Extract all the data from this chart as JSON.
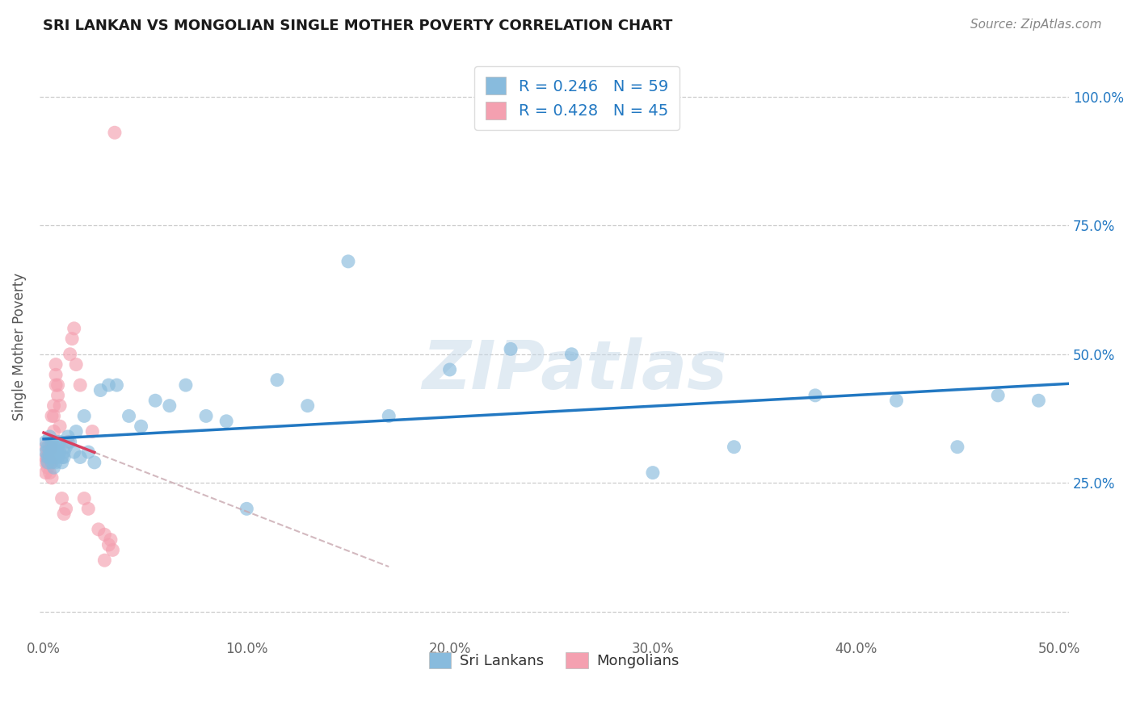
{
  "title": "SRI LANKAN VS MONGOLIAN SINGLE MOTHER POVERTY CORRELATION CHART",
  "source": "Source: ZipAtlas.com",
  "ylabel": "Single Mother Poverty",
  "xlim": [
    -0.002,
    0.505
  ],
  "ylim": [
    -0.05,
    1.08
  ],
  "yticks": [
    0.0,
    0.25,
    0.5,
    0.75,
    1.0
  ],
  "ytick_labels": [
    "",
    "25.0%",
    "50.0%",
    "75.0%",
    "100.0%"
  ],
  "xticks": [
    0.0,
    0.1,
    0.2,
    0.3,
    0.4,
    0.5
  ],
  "xtick_labels": [
    "0.0%",
    "10.0%",
    "20.0%",
    "30.0%",
    "40.0%",
    "50.0%"
  ],
  "blue_scatter_color": "#88BBDD",
  "pink_scatter_color": "#F4A0B0",
  "blue_line_color": "#2278C2",
  "pink_line_color": "#D84060",
  "pink_dashed_color": "#C8A8B0",
  "grid_color": "#CCCCCC",
  "bg_color": "#FFFFFF",
  "watermark": "ZIPatlas",
  "legend_R_blue": "R = 0.246",
  "legend_N_blue": "N = 59",
  "legend_R_pink": "R = 0.428",
  "legend_N_pink": "N = 45",
  "legend_label_blue": "Sri Lankans",
  "legend_label_pink": "Mongolians",
  "sri_lankan_x": [
    0.001,
    0.001,
    0.002,
    0.002,
    0.002,
    0.003,
    0.003,
    0.003,
    0.004,
    0.004,
    0.004,
    0.005,
    0.005,
    0.005,
    0.006,
    0.006,
    0.006,
    0.007,
    0.007,
    0.008,
    0.008,
    0.009,
    0.009,
    0.01,
    0.01,
    0.011,
    0.012,
    0.013,
    0.015,
    0.016,
    0.018,
    0.02,
    0.022,
    0.025,
    0.028,
    0.032,
    0.036,
    0.042,
    0.048,
    0.055,
    0.062,
    0.07,
    0.08,
    0.09,
    0.1,
    0.115,
    0.13,
    0.15,
    0.17,
    0.2,
    0.23,
    0.26,
    0.3,
    0.34,
    0.38,
    0.42,
    0.45,
    0.47,
    0.49
  ],
  "sri_lankan_y": [
    0.33,
    0.31,
    0.32,
    0.3,
    0.29,
    0.34,
    0.31,
    0.3,
    0.33,
    0.31,
    0.29,
    0.32,
    0.3,
    0.28,
    0.33,
    0.31,
    0.29,
    0.32,
    0.3,
    0.33,
    0.31,
    0.3,
    0.29,
    0.31,
    0.3,
    0.32,
    0.34,
    0.33,
    0.31,
    0.35,
    0.3,
    0.38,
    0.31,
    0.29,
    0.43,
    0.44,
    0.44,
    0.38,
    0.36,
    0.41,
    0.4,
    0.44,
    0.38,
    0.37,
    0.2,
    0.45,
    0.4,
    0.68,
    0.38,
    0.47,
    0.51,
    0.5,
    0.27,
    0.32,
    0.42,
    0.41,
    0.32,
    0.42,
    0.41
  ],
  "mongolian_x": [
    0.001,
    0.001,
    0.001,
    0.001,
    0.002,
    0.002,
    0.002,
    0.002,
    0.003,
    0.003,
    0.003,
    0.003,
    0.004,
    0.004,
    0.004,
    0.004,
    0.005,
    0.005,
    0.005,
    0.006,
    0.006,
    0.006,
    0.007,
    0.007,
    0.008,
    0.008,
    0.009,
    0.01,
    0.011,
    0.012,
    0.013,
    0.014,
    0.015,
    0.016,
    0.018,
    0.02,
    0.022,
    0.024,
    0.027,
    0.03,
    0.03,
    0.032,
    0.033,
    0.034,
    0.035
  ],
  "mongolian_y": [
    0.3,
    0.32,
    0.29,
    0.27,
    0.3,
    0.31,
    0.29,
    0.28,
    0.31,
    0.32,
    0.29,
    0.27,
    0.32,
    0.38,
    0.29,
    0.26,
    0.35,
    0.38,
    0.4,
    0.44,
    0.46,
    0.48,
    0.44,
    0.42,
    0.4,
    0.36,
    0.22,
    0.19,
    0.2,
    0.33,
    0.5,
    0.53,
    0.55,
    0.48,
    0.44,
    0.22,
    0.2,
    0.35,
    0.16,
    0.15,
    0.1,
    0.13,
    0.14,
    0.12,
    0.93
  ],
  "pink_line_x_solid_start": 0.0,
  "pink_line_x_solid_end": 0.025,
  "pink_line_x_dash_end": 0.17,
  "blue_line_x_start": 0.0,
  "blue_line_x_end": 0.505
}
